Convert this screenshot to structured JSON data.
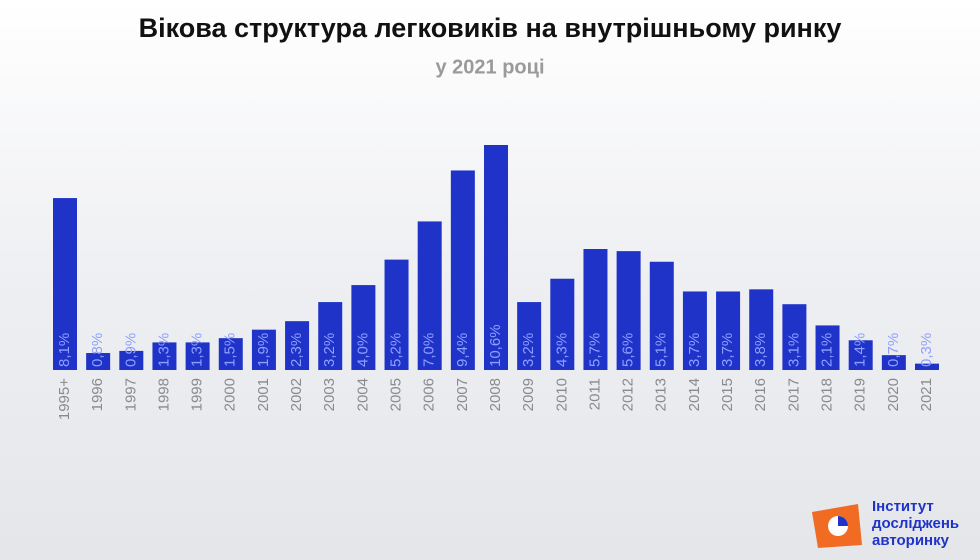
{
  "chart_data": {
    "type": "bar",
    "title": "Вікова структура легковиків на внутрішньому ринку",
    "subtitle": "у 2021 році",
    "categories": [
      "1995+",
      "1996",
      "1997",
      "1998",
      "1999",
      "2000",
      "2001",
      "2002",
      "2003",
      "2004",
      "2005",
      "2006",
      "2007",
      "2008",
      "2009",
      "2010",
      "2011",
      "2012",
      "2013",
      "2014",
      "2015",
      "2016",
      "2017",
      "2018",
      "2019",
      "2020",
      "2021"
    ],
    "values": [
      8.1,
      0.8,
      0.9,
      1.3,
      1.3,
      1.5,
      1.9,
      2.3,
      3.2,
      4.0,
      5.2,
      7.0,
      9.4,
      10.6,
      3.2,
      4.3,
      5.7,
      5.6,
      5.1,
      3.7,
      3.7,
      3.8,
      3.1,
      2.1,
      1.4,
      0.7,
      0.3
    ],
    "value_labels": [
      "8,1%",
      "0,8%",
      "0,9%",
      "1,3%",
      "1,3%",
      "1,5%",
      "1,9%",
      "2,3%",
      "3,2%",
      "4,0%",
      "5,2%",
      "7,0%",
      "9,4%",
      "10,6%",
      "3,2%",
      "4,3%",
      "5,7%",
      "5,6%",
      "5,1%",
      "3,7%",
      "3,7%",
      "3,8%",
      "3,1%",
      "2,1%",
      "1,4%",
      "0,7%",
      "0,3%"
    ],
    "color": "#1f33c8",
    "brand": [
      "Інститут",
      "досліджень",
      "авторинку"
    ]
  }
}
